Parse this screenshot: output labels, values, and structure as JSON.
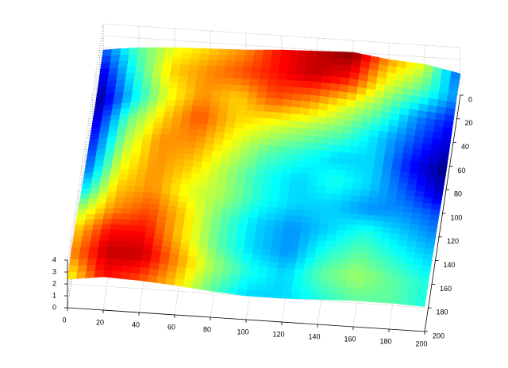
{
  "chart_data": {
    "type": "surface",
    "colormap": "jet",
    "grid": true,
    "x": [
      0,
      20,
      40,
      60,
      80,
      100,
      120,
      140,
      160,
      180,
      200
    ],
    "y": [
      0,
      20,
      40,
      60,
      80,
      100,
      120,
      140,
      160,
      180,
      200
    ],
    "z": [
      [
        1.8,
        2.2,
        2.4,
        2.5,
        2.6,
        2.8,
        2.9,
        3.0,
        2.6,
        2.4,
        1.8
      ],
      [
        1.6,
        2.1,
        2.5,
        2.6,
        2.7,
        2.8,
        2.9,
        2.8,
        2.4,
        2.2,
        1.9
      ],
      [
        1.5,
        2.0,
        2.4,
        2.6,
        2.5,
        2.7,
        2.6,
        2.4,
        2.2,
        1.9,
        1.7
      ],
      [
        1.6,
        2.2,
        2.5,
        2.7,
        2.5,
        2.4,
        2.3,
        2.2,
        2.0,
        1.8,
        1.6
      ],
      [
        1.7,
        2.3,
        2.6,
        2.6,
        2.4,
        2.2,
        2.1,
        2.0,
        2.0,
        1.7,
        1.5
      ],
      [
        1.8,
        2.4,
        2.6,
        2.5,
        2.3,
        2.1,
        2.0,
        2.1,
        2.0,
        1.8,
        1.6
      ],
      [
        2.0,
        2.5,
        2.6,
        2.4,
        2.3,
        2.1,
        2.0,
        2.0,
        1.9,
        1.9,
        1.8
      ],
      [
        2.3,
        2.6,
        2.7,
        2.5,
        2.2,
        2.0,
        1.9,
        2.0,
        2.1,
        2.0,
        1.9
      ],
      [
        2.5,
        2.8,
        2.8,
        2.5,
        2.2,
        2.0,
        1.9,
        2.1,
        2.2,
        2.1,
        2.0
      ],
      [
        2.6,
        2.9,
        2.9,
        2.6,
        2.3,
        2.1,
        2.0,
        2.2,
        2.3,
        2.2,
        2.1
      ],
      [
        2.4,
        2.8,
        2.7,
        2.5,
        2.2,
        2.0,
        2.0,
        2.1,
        2.2,
        2.2,
        2.1
      ]
    ],
    "xlim": [
      0,
      200
    ],
    "ylim": [
      0,
      200
    ],
    "zlim": [
      0,
      4
    ],
    "xticks": [
      0,
      20,
      40,
      60,
      80,
      100,
      120,
      140,
      160,
      180,
      200
    ],
    "yticks": [
      0,
      20,
      40,
      60,
      80,
      100,
      120,
      140,
      160,
      180,
      200
    ],
    "zticks": [
      0,
      1,
      2,
      3,
      4
    ]
  }
}
